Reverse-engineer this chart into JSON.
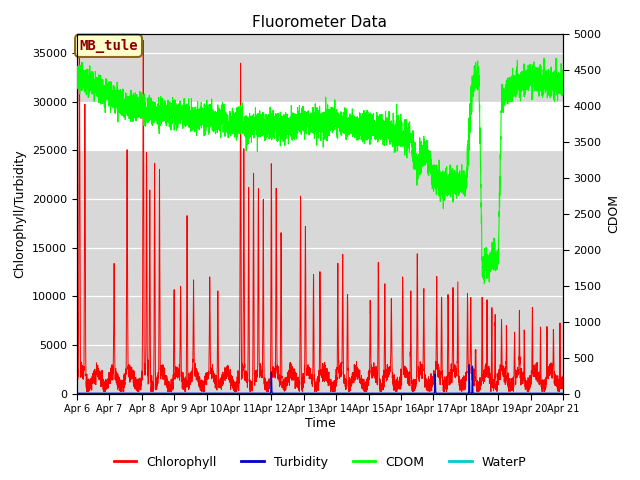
{
  "title": "Fluorometer Data",
  "xlabel": "Time",
  "ylabel_left": "Chlorophyll/Turbidity",
  "ylabel_right": "CDOM",
  "ylim_left": [
    0,
    37000
  ],
  "ylim_right": [
    0,
    5000
  ],
  "xlim": [
    0,
    15
  ],
  "x_tick_labels": [
    "Apr 6",
    "Apr 7",
    "Apr 8",
    "Apr 9",
    "Apr 10",
    "Apr 11",
    "Apr 12",
    "Apr 13",
    "Apr 14",
    "Apr 15",
    "Apr 16",
    "Apr 17",
    "Apr 18",
    "Apr 19",
    "Apr 20",
    "Apr 21"
  ],
  "background_color": "#ffffff",
  "plot_bg_color": "#d8d8d8",
  "white_band": [
    25000,
    30000
  ],
  "annotation_box_text": "MB_tule",
  "annotation_box_color": "#ffffcc",
  "annotation_box_border": "#8b6914",
  "annotation_text_color": "#8b0000",
  "colors": {
    "Chlorophyll": "#ff0000",
    "Turbidity": "#0000cc",
    "CDOM": "#00ff00",
    "WaterP": "#00cccc"
  },
  "legend_labels": [
    "Chlorophyll",
    "Turbidity",
    "CDOM",
    "WaterP"
  ]
}
